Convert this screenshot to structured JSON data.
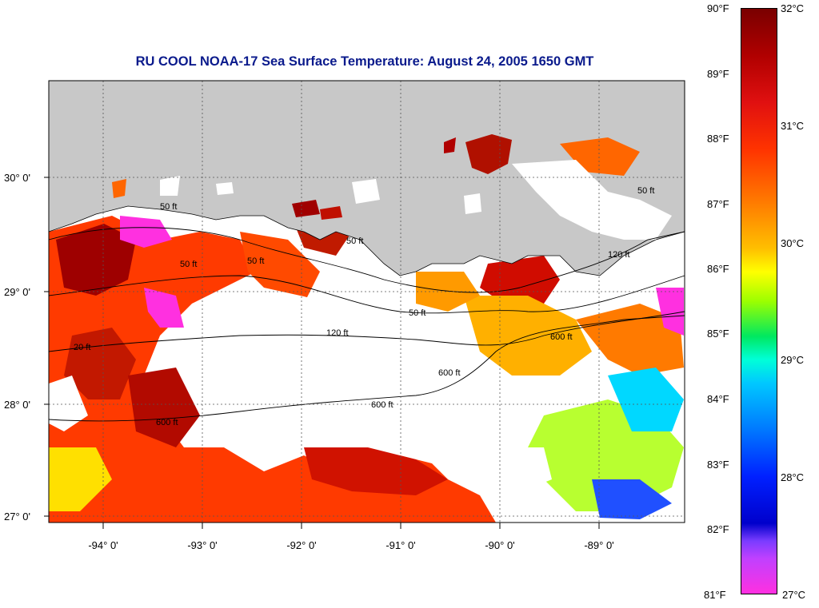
{
  "title": "RU COOL  NOAA-17  Sea Surface Temperature:  August 24, 2005 1650 GMT",
  "map": {
    "lat_labels": [
      "30° 0'",
      "29° 0'",
      "28° 0'",
      "27° 0'"
    ],
    "lon_labels": [
      "-94° 0'",
      "-93° 0'",
      "-92° 0'",
      "-91° 0'",
      "-90° 0'",
      "-89° 0'"
    ],
    "contour_labels": [
      "50 ft",
      "50 ft",
      "50 ft",
      "50 ft",
      "50 ft",
      "50 ft",
      "120 ft",
      "120 ft",
      "600 ft",
      "600 ft",
      "600 ft",
      "600 ft",
      "20 ft"
    ],
    "colors": {
      "land": "#c8c8c8",
      "cloud": "#ffffff",
      "sst_hot": "#a00000",
      "sst_warm": "#ff3300",
      "sst_mid": "#ff9900",
      "sst_cool": "#ffee00",
      "sst_cold": "#00e0ff",
      "sst_coldest": "#ff30e0"
    }
  },
  "colorbar": {
    "fahrenheit_labels": [
      "90°F",
      "89°F",
      "88°F",
      "87°F",
      "86°F",
      "85°F",
      "84°F",
      "83°F",
      "82°F",
      "81°F"
    ],
    "celsius_labels": [
      "32°C",
      "31°C",
      "30°C",
      "29°C",
      "28°C",
      "27°C"
    ]
  }
}
